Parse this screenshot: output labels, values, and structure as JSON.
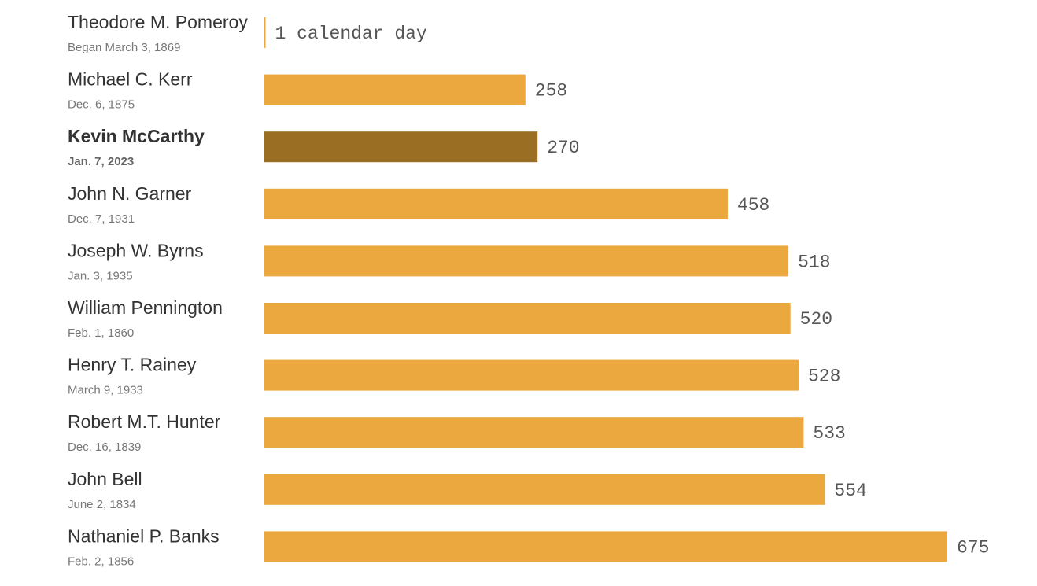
{
  "chart_data": {
    "type": "bar",
    "orientation": "horizontal",
    "categories": [
      "Theodore M. Pomeroy",
      "Michael C. Kerr",
      "Kevin McCarthy",
      "John N. Garner",
      "Joseph W. Byrns",
      "William Pennington",
      "Henry T. Rainey",
      "Robert M.T. Hunter",
      "John Bell",
      "Nathaniel P. Banks"
    ],
    "subtitles": [
      "Began March 3, 1869",
      "Dec. 6, 1875",
      "Jan. 7, 2023",
      "Dec. 7, 1931",
      "Jan. 3, 1935",
      "Feb. 1, 1860",
      "March 9, 1933",
      "Dec. 16, 1839",
      "June 2, 1834",
      "Feb. 2, 1856"
    ],
    "values": [
      1,
      258,
      270,
      458,
      518,
      520,
      528,
      533,
      554,
      675
    ],
    "value_labels": [
      "1 calendar day",
      "258",
      "270",
      "458",
      "518",
      "520",
      "528",
      "533",
      "554",
      "675"
    ],
    "highlight_index": 2,
    "xlim": [
      0,
      675
    ],
    "grid": false,
    "legend": "none",
    "colors": {
      "bar": "#eba83e",
      "highlight": "#9a6f24"
    }
  }
}
